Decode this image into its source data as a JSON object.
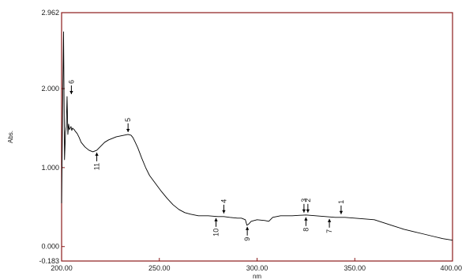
{
  "chart_data": {
    "type": "line",
    "xlabel": "nm",
    "ylabel": "Abs.",
    "xlim": [
      200.0,
      400.0
    ],
    "ylim": [
      -0.183,
      2.962
    ],
    "x_ticks": [
      {
        "value": 200,
        "label": "200.00"
      },
      {
        "value": 250,
        "label": "250.00"
      },
      {
        "value": 300,
        "label": "300.00"
      },
      {
        "value": 350,
        "label": "350.00"
      },
      {
        "value": 400,
        "label": "400.00"
      }
    ],
    "y_ticks": [
      {
        "value": 2.962,
        "label": "2.962"
      },
      {
        "value": 2.0,
        "label": "2.000"
      },
      {
        "value": 1.0,
        "label": "1.000"
      },
      {
        "value": 0.0,
        "label": "0.000"
      },
      {
        "value": -0.183,
        "label": "-0.183"
      }
    ],
    "grid": false,
    "colors": {
      "frame": "#8b1a1a",
      "series": "#000000",
      "text": "#1a1a1a"
    },
    "series": [
      {
        "x": [
          200.0,
          200.5,
          201.0,
          201.5,
          202.0,
          202.4,
          202.8,
          203.2,
          203.6,
          204.0,
          204.4,
          204.8,
          205.2,
          205.6,
          206.0,
          206.5,
          207.0,
          208.0,
          209.0,
          210.0,
          212.0,
          214.0,
          216.0,
          218.0,
          220.0,
          222.0,
          224.0,
          226.0,
          228.0,
          230.0,
          232.0,
          234.0,
          235.5,
          236.5,
          237.5,
          239.0,
          241.0,
          243.0,
          245.0,
          248.0,
          251.0,
          254.0,
          257.0,
          260.0,
          263.0,
          266.0,
          270.0,
          275.0,
          280.0,
          283.0,
          286.0,
          290.0,
          292.0,
          294.0,
          294.8,
          295.5,
          297.0,
          300.0,
          304.0,
          306.0,
          308.0,
          312.0,
          318.0,
          325.0,
          330.0,
          335.0,
          340.0,
          345.0,
          350.0,
          355.0,
          360.0,
          365.0,
          370.0,
          375.0,
          380.0,
          385.0,
          390.0,
          395.0,
          400.0
        ],
        "y": [
          0.55,
          1.7,
          2.72,
          1.1,
          1.45,
          1.52,
          1.9,
          1.42,
          1.55,
          1.48,
          1.5,
          1.52,
          1.47,
          1.5,
          1.49,
          1.48,
          1.46,
          1.43,
          1.38,
          1.32,
          1.26,
          1.22,
          1.2,
          1.22,
          1.27,
          1.32,
          1.35,
          1.37,
          1.39,
          1.4,
          1.41,
          1.42,
          1.41,
          1.38,
          1.33,
          1.25,
          1.12,
          1.0,
          0.9,
          0.8,
          0.7,
          0.61,
          0.53,
          0.47,
          0.43,
          0.41,
          0.39,
          0.39,
          0.38,
          0.38,
          0.37,
          0.36,
          0.36,
          0.34,
          0.27,
          0.28,
          0.32,
          0.34,
          0.33,
          0.32,
          0.37,
          0.39,
          0.39,
          0.4,
          0.39,
          0.38,
          0.37,
          0.37,
          0.36,
          0.35,
          0.34,
          0.3,
          0.26,
          0.22,
          0.19,
          0.16,
          0.13,
          0.1,
          0.08
        ]
      }
    ],
    "annotations": [
      {
        "label": "1",
        "x": 343.0,
        "y": 0.38,
        "dir": "up"
      },
      {
        "label": "2",
        "x": 326.0,
        "y": 0.4,
        "dir": "up"
      },
      {
        "label": "3",
        "x": 324.0,
        "y": 0.4,
        "dir": "up"
      },
      {
        "label": "4",
        "x": 283.0,
        "y": 0.39,
        "dir": "up"
      },
      {
        "label": "5",
        "x": 234.0,
        "y": 1.42,
        "dir": "up"
      },
      {
        "label": "6",
        "x": 205.0,
        "y": 1.9,
        "dir": "up"
      },
      {
        "label": "7",
        "x": 337.0,
        "y": 0.38,
        "dir": "down"
      },
      {
        "label": "8",
        "x": 325.0,
        "y": 0.4,
        "dir": "down"
      },
      {
        "label": "9",
        "x": 295.0,
        "y": 0.28,
        "dir": "down"
      },
      {
        "label": "10",
        "x": 279.0,
        "y": 0.39,
        "dir": "down"
      },
      {
        "label": "11",
        "x": 218.0,
        "y": 1.22,
        "dir": "down"
      }
    ]
  }
}
